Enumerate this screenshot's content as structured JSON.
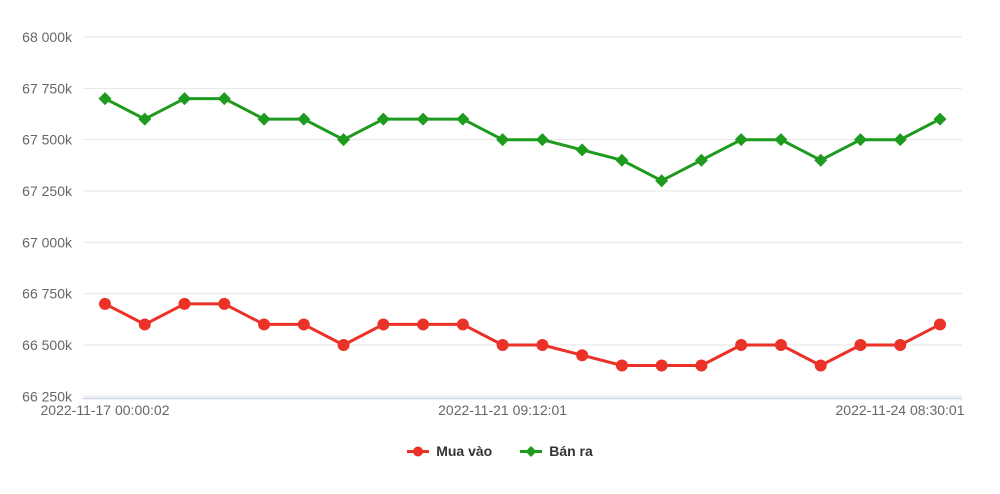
{
  "chart_data": {
    "type": "line",
    "title": "",
    "xlabel": "",
    "ylabel": "",
    "grid": true,
    "legend_position": "bottom-center",
    "ylim": [
      66250,
      68100
    ],
    "y_ticks": [
      {
        "value": 66250,
        "label": "66 250k"
      },
      {
        "value": 66500,
        "label": "66 500k"
      },
      {
        "value": 66750,
        "label": "66 750k"
      },
      {
        "value": 67000,
        "label": "67 000k"
      },
      {
        "value": 67250,
        "label": "67 250k"
      },
      {
        "value": 67500,
        "label": "67 500k"
      },
      {
        "value": 67750,
        "label": "67 750k"
      },
      {
        "value": 68000,
        "label": "68 000k"
      }
    ],
    "x_tick_labels": [
      {
        "index": 0,
        "label": "2022-11-17 00:00:02"
      },
      {
        "index": 10,
        "label": "2022-11-21 09:12:01"
      },
      {
        "index": 20,
        "label": "2022-11-24 08:30:01"
      }
    ],
    "series": [
      {
        "name": "Mua vào",
        "color": "#eb3228",
        "marker": "circle",
        "values": [
          66700,
          66600,
          66700,
          66700,
          66600,
          66600,
          66500,
          66600,
          66600,
          66600,
          66500,
          66500,
          66450,
          66400,
          66400,
          66400,
          66500,
          66500,
          66400,
          66500,
          66500,
          66600
        ]
      },
      {
        "name": "Bán ra",
        "color": "#1e9b1e",
        "marker": "diamond",
        "values": [
          67700,
          67600,
          67700,
          67700,
          67600,
          67600,
          67500,
          67600,
          67600,
          67600,
          67500,
          67500,
          67450,
          67400,
          67300,
          67400,
          67500,
          67500,
          67400,
          67500,
          67500,
          67600
        ]
      }
    ],
    "colors": {
      "background": "#ffffff",
      "grid_line": "#e6e6e6",
      "axis_line": "#ccd6eb",
      "tick_label": "#666666",
      "legend_text": "#333333"
    }
  }
}
